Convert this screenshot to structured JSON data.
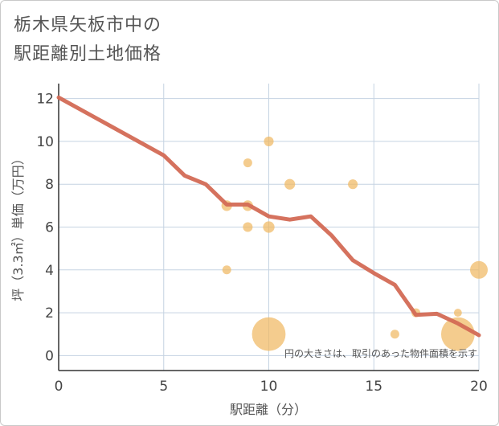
{
  "title_line1": "栃木県矢板市中の",
  "title_line2": "駅距離別土地価格",
  "chart_data": {
    "type": "scatter+line",
    "xlabel": "駅距離（分）",
    "ylabel": "坪（3.3㎡）単価（万円）",
    "xlim": [
      0,
      20
    ],
    "ylim": [
      -0.7,
      12.7
    ],
    "x_ticks": [
      0,
      5,
      10,
      15,
      20
    ],
    "y_ticks": [
      0,
      2,
      4,
      6,
      8,
      10,
      12
    ],
    "grid": true,
    "note": "円の大きさは、取引のあった物件面積を示す",
    "colors": {
      "bubble": "#f0b963",
      "line": "#d36a55",
      "grid": "#c5d3e2",
      "bg": "#ffffff"
    },
    "scatter": [
      {
        "x": 8,
        "y": 7,
        "size": 1.2
      },
      {
        "x": 8,
        "y": 4,
        "size": 1.0
      },
      {
        "x": 9,
        "y": 9,
        "size": 1.0
      },
      {
        "x": 9,
        "y": 7,
        "size": 1.2
      },
      {
        "x": 9,
        "y": 6,
        "size": 1.1
      },
      {
        "x": 10,
        "y": 10,
        "size": 1.1
      },
      {
        "x": 10,
        "y": 6,
        "size": 1.3
      },
      {
        "x": 10,
        "y": 1,
        "size": 3.8
      },
      {
        "x": 11,
        "y": 8,
        "size": 1.2
      },
      {
        "x": 14,
        "y": 8,
        "size": 1.1
      },
      {
        "x": 16,
        "y": 1,
        "size": 1.0
      },
      {
        "x": 17,
        "y": 2,
        "size": 1.0
      },
      {
        "x": 19,
        "y": 2,
        "size": 0.9
      },
      {
        "x": 19,
        "y": 1,
        "size": 3.8
      },
      {
        "x": 20,
        "y": 4,
        "size": 2.0
      }
    ],
    "trend": [
      {
        "x": 0,
        "y": 12.05
      },
      {
        "x": 5,
        "y": 9.35
      },
      {
        "x": 6,
        "y": 8.4
      },
      {
        "x": 7,
        "y": 8.0
      },
      {
        "x": 8,
        "y": 7.05
      },
      {
        "x": 9,
        "y": 7.05
      },
      {
        "x": 10,
        "y": 6.5
      },
      {
        "x": 11,
        "y": 6.35
      },
      {
        "x": 12,
        "y": 6.5
      },
      {
        "x": 13,
        "y": 5.6
      },
      {
        "x": 14,
        "y": 4.45
      },
      {
        "x": 15,
        "y": 3.85
      },
      {
        "x": 16,
        "y": 3.3
      },
      {
        "x": 17,
        "y": 1.9
      },
      {
        "x": 18,
        "y": 1.95
      },
      {
        "x": 19,
        "y": 1.5
      },
      {
        "x": 20,
        "y": 0.95
      }
    ]
  }
}
